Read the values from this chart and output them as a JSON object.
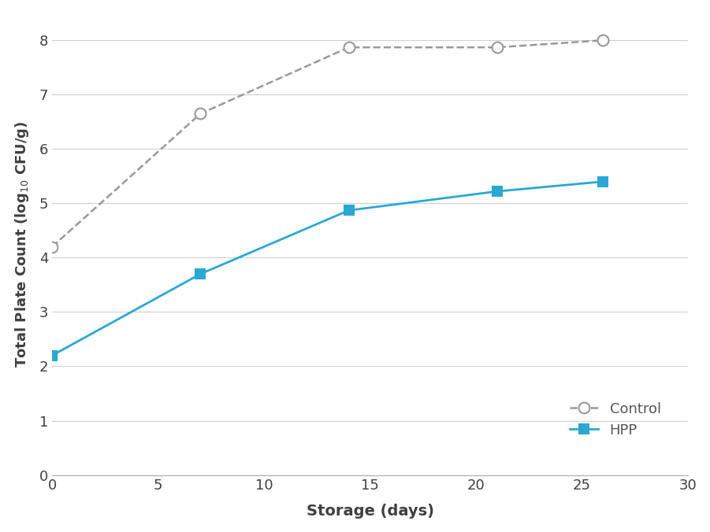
{
  "control_x": [
    0,
    7,
    14,
    21,
    26
  ],
  "control_y": [
    4.2,
    6.65,
    7.87,
    7.87,
    8.0
  ],
  "hpp_x": [
    0,
    7,
    14,
    21,
    26
  ],
  "hpp_y": [
    2.2,
    3.7,
    4.87,
    5.22,
    5.4
  ],
  "control_color": "#999999",
  "hpp_color": "#2aa8d4",
  "xlabel": "Storage (days)",
  "ylabel": "Total Plate Count (log$_{10}$ CFU/g)",
  "xlim": [
    0,
    30
  ],
  "ylim": [
    0,
    8.5
  ],
  "xticks": [
    0,
    5,
    10,
    15,
    20,
    25,
    30
  ],
  "yticks": [
    0,
    1,
    2,
    3,
    4,
    5,
    6,
    7,
    8
  ],
  "legend_control": "Control",
  "legend_hpp": "HPP",
  "xlabel_fontsize": 14,
  "ylabel_fontsize": 13,
  "tick_fontsize": 13,
  "legend_fontsize": 13
}
